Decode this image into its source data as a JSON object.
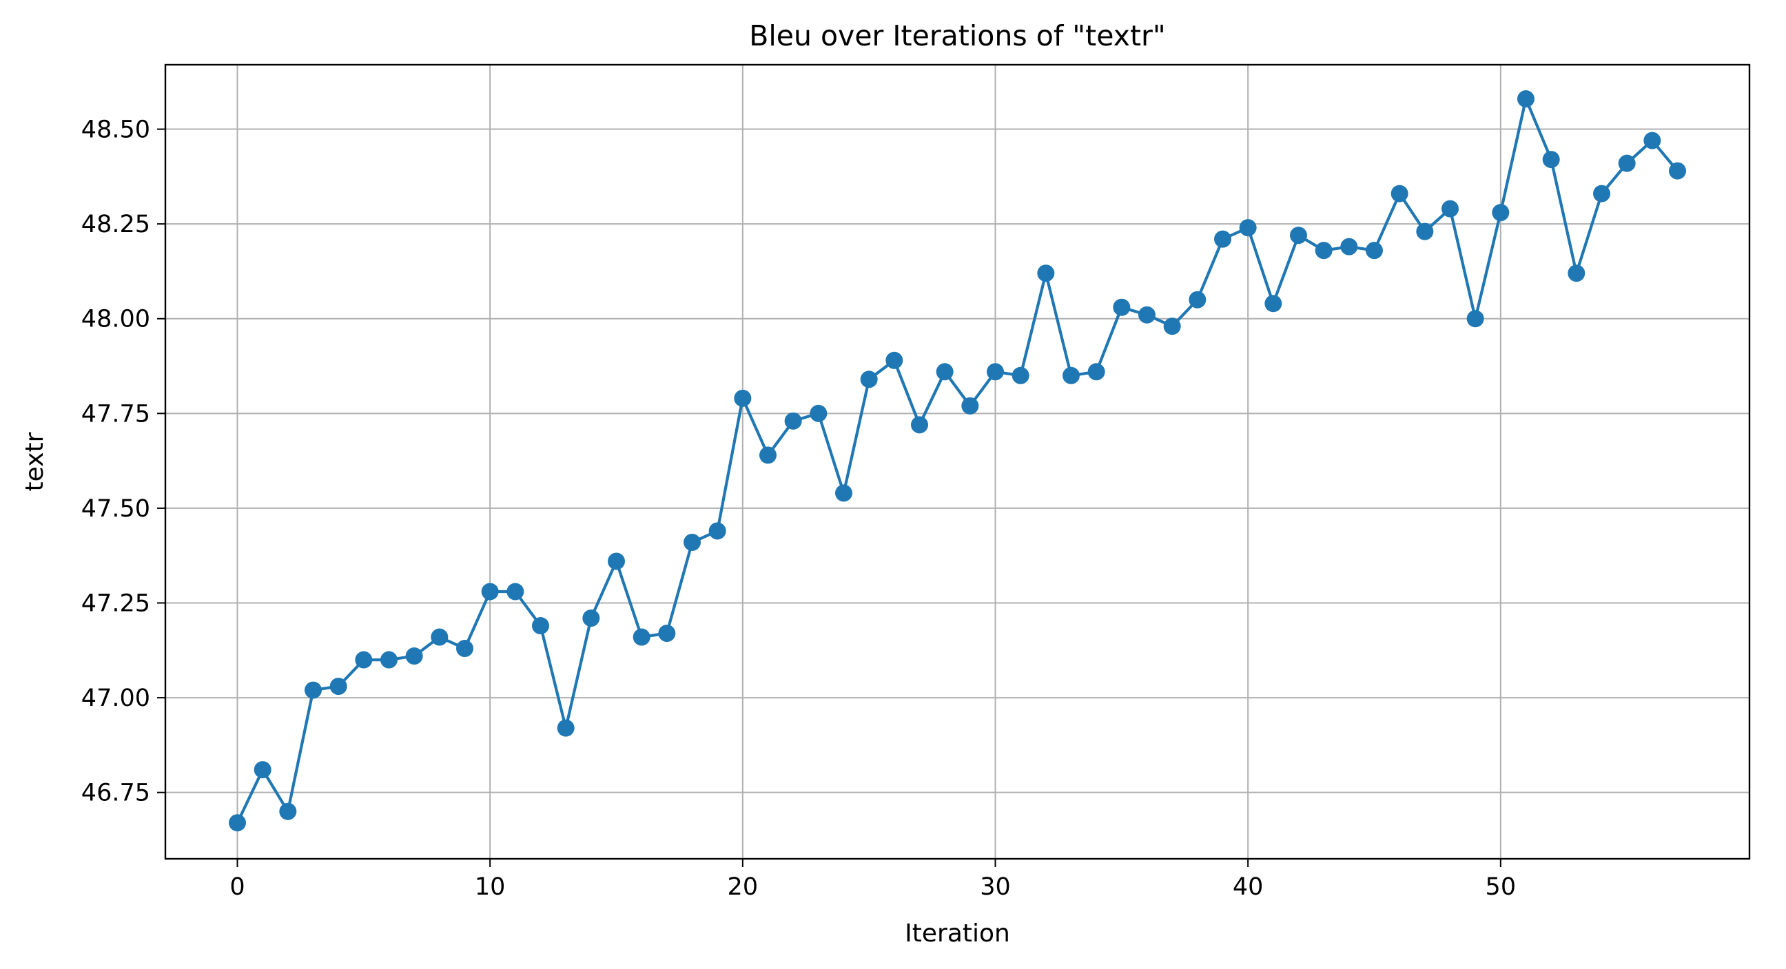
{
  "chart_data": {
    "type": "line",
    "title": "Bleu over Iterations of \"textr\"",
    "xlabel": "Iteration",
    "ylabel": "textr",
    "xlim": [
      -2.85,
      59.85
    ],
    "ylim": [
      46.575,
      48.67
    ],
    "xticks": [
      0,
      10,
      20,
      30,
      40,
      50
    ],
    "yticks": [
      46.75,
      47.0,
      47.25,
      47.5,
      47.75,
      48.0,
      48.25,
      48.5
    ],
    "ytick_decimals": 2,
    "grid": true,
    "legend": "none",
    "series": [
      {
        "color": "#1f77b4",
        "marker": "circle",
        "x": [
          0,
          1,
          2,
          3,
          4,
          5,
          6,
          7,
          8,
          9,
          10,
          11,
          12,
          13,
          14,
          15,
          16,
          17,
          18,
          19,
          20,
          21,
          22,
          23,
          24,
          25,
          26,
          27,
          28,
          29,
          30,
          31,
          32,
          33,
          34,
          35,
          36,
          37,
          38,
          39,
          40,
          41,
          42,
          43,
          44,
          45,
          46,
          47,
          48,
          49,
          50,
          51,
          52,
          53,
          54,
          55,
          56,
          57
        ],
        "y": [
          46.67,
          46.81,
          46.7,
          47.02,
          47.03,
          47.1,
          47.1,
          47.11,
          47.16,
          47.13,
          47.28,
          47.28,
          47.19,
          46.92,
          47.21,
          47.36,
          47.16,
          47.17,
          47.41,
          47.44,
          47.79,
          47.64,
          47.73,
          47.75,
          47.54,
          47.84,
          47.89,
          47.72,
          47.86,
          47.77,
          47.86,
          47.85,
          48.12,
          47.85,
          47.86,
          48.03,
          48.01,
          47.98,
          48.05,
          48.21,
          48.24,
          48.04,
          48.22,
          48.18,
          48.19,
          48.18,
          48.33,
          48.23,
          48.29,
          48.0,
          48.28,
          48.58,
          48.42,
          48.12,
          48.33,
          48.41,
          48.47,
          48.39
        ]
      }
    ]
  }
}
